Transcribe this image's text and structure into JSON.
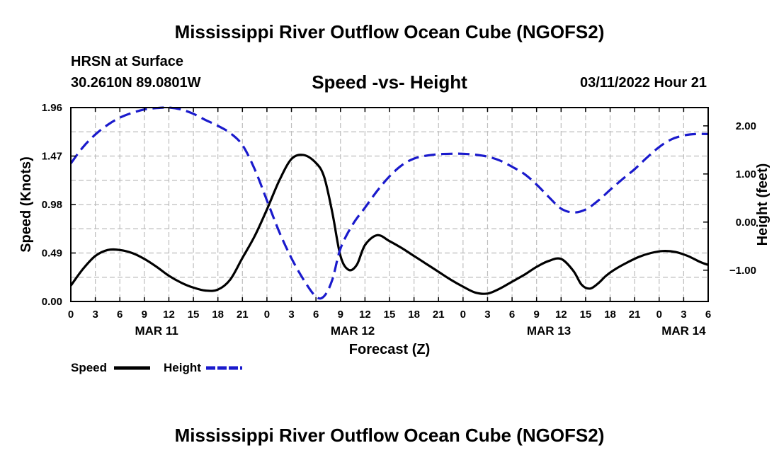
{
  "page": {
    "title": "Mississippi River Outflow Ocean Cube (NGOFS2)",
    "title_repeat": "Mississippi River Outflow Ocean Cube (NGOFS2)",
    "station": "HRSN at Surface",
    "coordinates": "30.2610N  89.0801W",
    "subtitle": "Speed -vs- Height",
    "datetime": "03/11/2022 Hour 21"
  },
  "chart_data": {
    "type": "line",
    "title": "Speed -vs- Height",
    "xlabel": "Forecast (Z)",
    "ylabel": "Speed (Knots)",
    "y2label": "Height (feet)",
    "x_range_hours": [
      0,
      78
    ],
    "xticks": [
      {
        "h": 0,
        "label": "0"
      },
      {
        "h": 3,
        "label": "3"
      },
      {
        "h": 6,
        "label": "6"
      },
      {
        "h": 9,
        "label": "9"
      },
      {
        "h": 12,
        "label": "12"
      },
      {
        "h": 15,
        "label": "15"
      },
      {
        "h": 18,
        "label": "18"
      },
      {
        "h": 21,
        "label": "21"
      },
      {
        "h": 24,
        "label": "0"
      },
      {
        "h": 27,
        "label": "3"
      },
      {
        "h": 30,
        "label": "6"
      },
      {
        "h": 33,
        "label": "9"
      },
      {
        "h": 36,
        "label": "12"
      },
      {
        "h": 39,
        "label": "15"
      },
      {
        "h": 42,
        "label": "18"
      },
      {
        "h": 45,
        "label": "21"
      },
      {
        "h": 48,
        "label": "0"
      },
      {
        "h": 51,
        "label": "3"
      },
      {
        "h": 54,
        "label": "6"
      },
      {
        "h": 57,
        "label": "9"
      },
      {
        "h": 60,
        "label": "12"
      },
      {
        "h": 63,
        "label": "15"
      },
      {
        "h": 66,
        "label": "18"
      },
      {
        "h": 69,
        "label": "21"
      },
      {
        "h": 72,
        "label": "0"
      },
      {
        "h": 75,
        "label": "3"
      },
      {
        "h": 78,
        "label": "6"
      }
    ],
    "date_labels": [
      {
        "h": 10.5,
        "label": "MAR 11"
      },
      {
        "h": 34.5,
        "label": "MAR 12"
      },
      {
        "h": 58.5,
        "label": "MAR 13"
      },
      {
        "h": 75,
        "label": "MAR 14"
      }
    ],
    "ylim": [
      0,
      1.96
    ],
    "yticks": [
      {
        "v": 0,
        "label": "0.00"
      },
      {
        "v": 0.49,
        "label": "0.49"
      },
      {
        "v": 0.98,
        "label": "0.98"
      },
      {
        "v": 1.47,
        "label": "1.47"
      },
      {
        "v": 1.96,
        "label": "1.96"
      }
    ],
    "y2lim": [
      -1.65,
      2.38
    ],
    "y2ticks": [
      {
        "v": -1,
        "label": "−1.00"
      },
      {
        "v": 0,
        "label": "0.00"
      },
      {
        "v": 1,
        "label": "1.00"
      },
      {
        "v": 2,
        "label": "2.00"
      }
    ],
    "grid": true,
    "legend": [
      {
        "name": "Speed",
        "color": "#000000",
        "style": "solid"
      },
      {
        "name": "Height",
        "color": "#1a1acc",
        "style": "dashed"
      }
    ],
    "series": [
      {
        "name": "Speed",
        "axis": "left",
        "color": "#000000",
        "x": [
          0,
          1.5,
          3,
          4.5,
          6,
          7.5,
          9,
          10.5,
          12,
          13.5,
          15,
          16.5,
          18,
          19.5,
          21,
          22.5,
          24,
          25.5,
          27,
          28.5,
          30,
          31,
          32,
          33,
          34,
          35,
          36,
          37.5,
          39,
          40.5,
          42,
          43.5,
          45,
          46.5,
          48,
          49.5,
          51,
          52.5,
          54,
          55.5,
          57,
          58.5,
          60,
          61.5,
          62.5,
          63.5,
          64.5,
          65.5,
          66.5,
          68,
          69.5,
          71,
          72.5,
          74,
          75.5,
          77,
          78
        ],
        "values": [
          0.16,
          0.33,
          0.46,
          0.52,
          0.52,
          0.49,
          0.43,
          0.35,
          0.26,
          0.19,
          0.14,
          0.11,
          0.12,
          0.22,
          0.44,
          0.66,
          0.93,
          1.22,
          1.44,
          1.48,
          1.4,
          1.26,
          0.9,
          0.46,
          0.32,
          0.37,
          0.57,
          0.67,
          0.61,
          0.54,
          0.46,
          0.38,
          0.3,
          0.22,
          0.15,
          0.09,
          0.08,
          0.13,
          0.2,
          0.27,
          0.35,
          0.41,
          0.43,
          0.31,
          0.17,
          0.13,
          0.18,
          0.26,
          0.32,
          0.39,
          0.45,
          0.49,
          0.51,
          0.5,
          0.46,
          0.4,
          0.37
        ]
      },
      {
        "name": "Height",
        "axis": "right",
        "color": "#1a1acc",
        "x": [
          0,
          1.5,
          3,
          4.5,
          6,
          7.5,
          9,
          10.5,
          12,
          13.5,
          15,
          16.5,
          18,
          19.5,
          21,
          22.5,
          24,
          25.5,
          27,
          28.5,
          30,
          31,
          32,
          33,
          34.5,
          36,
          37.5,
          39,
          40.5,
          42,
          43.5,
          45,
          46.5,
          48,
          49.5,
          51,
          52.5,
          54,
          55.5,
          57,
          58.5,
          60,
          61.5,
          63,
          64.5,
          66,
          67.5,
          69,
          70.5,
          72,
          73.5,
          75,
          76.5,
          78
        ],
        "values": [
          1.22,
          1.56,
          1.82,
          2.02,
          2.17,
          2.27,
          2.34,
          2.37,
          2.38,
          2.34,
          2.25,
          2.12,
          2.0,
          1.85,
          1.6,
          1.1,
          0.45,
          -0.2,
          -0.75,
          -1.2,
          -1.55,
          -1.54,
          -1.2,
          -0.55,
          -0.05,
          0.3,
          0.65,
          0.95,
          1.18,
          1.32,
          1.38,
          1.41,
          1.42,
          1.42,
          1.4,
          1.36,
          1.28,
          1.15,
          1.0,
          0.78,
          0.52,
          0.28,
          0.2,
          0.26,
          0.44,
          0.67,
          0.89,
          1.1,
          1.34,
          1.56,
          1.72,
          1.8,
          1.83,
          1.83
        ]
      }
    ]
  }
}
